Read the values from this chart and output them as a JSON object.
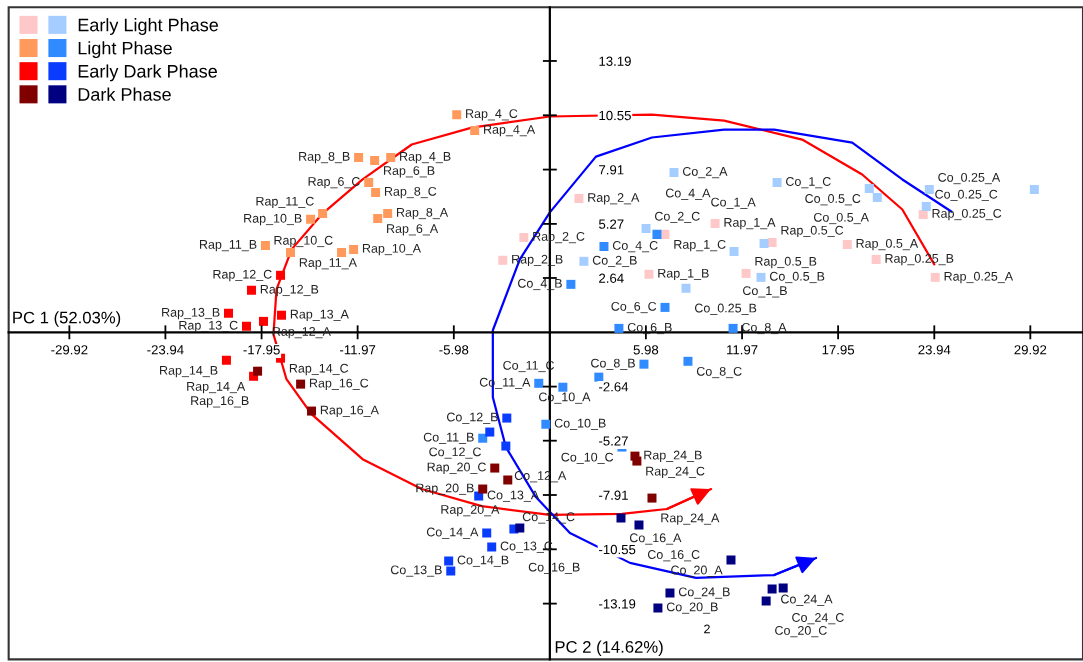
{
  "chart_data": {
    "type": "scatter",
    "marker": "square",
    "legend": "top left",
    "xlabel": "PC 1 (52.03%)",
    "ylabel": "PC 2 (14.62%)",
    "xlim": [
      -33.7,
      33.2
    ],
    "ylim": [
      -15.9,
      15.8
    ],
    "xticks": [
      -29.92,
      -23.94,
      -17.95,
      -11.97,
      -5.98,
      5.98,
      11.97,
      17.95,
      23.94,
      29.92
    ],
    "yticks": [
      -13.19,
      -10.55,
      -7.91,
      -5.27,
      -2.64,
      2.64,
      5.27,
      7.91,
      10.55,
      13.19
    ],
    "series": [
      {
        "color": "#ffc8c8",
        "x": [
          1.81,
          -1.62,
          -2.93,
          6.17,
          10.29,
          7.17,
          13.84,
          18.52,
          20.32,
          24.0,
          23.25,
          12.22
        ],
        "values": [
          6.5,
          4.61,
          3.5,
          2.82,
          5.29,
          4.76,
          4.37,
          4.27,
          3.54,
          2.67,
          5.73,
          2.86
        ]
      },
      {
        "name": "Early Light Phase",
        "color": "#a6cdff",
        "x": [
          7.73,
          14.15,
          19.89,
          20.39,
          23.44,
          23.63,
          30.17,
          2.12,
          5.99,
          11.47,
          13.34,
          13.15,
          8.48
        ],
        "values": [
          7.77,
          7.28,
          6.99,
          6.55,
          6.12,
          6.94,
          6.94,
          3.45,
          5.05,
          3.93,
          4.32,
          2.67,
          2.14
        ]
      },
      {
        "color": "#ff9a5c",
        "x": [
          -5.8,
          -4.68,
          -11.91,
          -10.91,
          -9.91,
          -11.28,
          -10.85,
          -14.15,
          -14.9,
          -10.1,
          -10.72,
          -17.71,
          -16.15,
          -12.97,
          -12.22
        ],
        "values": [
          10.58,
          9.81,
          8.5,
          8.35,
          8.5,
          7.28,
          6.8,
          5.78,
          5.49,
          5.78,
          5.53,
          4.22,
          3.88,
          3.88,
          4.03
        ]
      },
      {
        "name": "Light Phase",
        "color": "#2f8bff",
        "x": [
          6.67,
          3.37,
          1.31,
          7.17,
          4.3,
          11.41,
          5.86,
          8.6,
          3.05,
          -0.69,
          0.81,
          -0.25,
          -4.18,
          4.49
        ],
        "values": [
          4.76,
          4.17,
          2.33,
          1.21,
          0.19,
          0.19,
          -1.55,
          -1.41,
          -2.18,
          -2.48,
          -2.67,
          -4.47,
          -5.15,
          -5.58
        ]
      },
      {
        "color": "#ff0000",
        "x": [
          -16.77,
          -18.58,
          -20.01,
          -16.71,
          -18.89,
          -17.83,
          -20.14,
          -16.77,
          -18.45
        ],
        "values": [
          2.77,
          2.04,
          0.92,
          0.83,
          0.29,
          0.53,
          -1.36,
          -1.26,
          -2.14
        ]
      },
      {
        "name": "Early Dark Phase",
        "color": "#0a3cff",
        "x": [
          -2.68,
          -3.74,
          -2.74,
          -4.43,
          -3.93,
          -3.62,
          -6.3,
          -6.17,
          -2.24
        ],
        "values": [
          -4.17,
          -4.85,
          -5.53,
          -7.96,
          -9.76,
          -10.44,
          -11.12,
          -11.6,
          -9.56
        ]
      },
      {
        "color": "#800000",
        "x": [
          -18.2,
          -15.52,
          -14.84,
          -3.43,
          -2.62,
          -4.18,
          5.3,
          5.42,
          6.36
        ],
        "values": [
          -1.89,
          -2.52,
          -3.83,
          -6.6,
          -7.18,
          -7.62,
          -6.02,
          -6.26,
          -8.06
        ]
      },
      {
        "name": "Dark Phase",
        "color": "#000080",
        "x": [
          -1.87,
          4.43,
          5.55,
          11.28,
          7.48,
          6.73,
          13.84,
          14.53,
          13.47
        ],
        "values": [
          -9.51,
          -9.03,
          -9.37,
          -11.07,
          -12.67,
          -13.4,
          -12.48,
          -12.43,
          -13.06
        ]
      },
      {
        "type": "line",
        "marker": "none",
        "color": "#ff0000",
        "x": [
          23.94,
          21.95,
          19.45,
          15.71,
          10.85,
          6.36,
          0,
          -4.86,
          -8.6,
          -11.66,
          -14.21,
          -16.08,
          -17.02,
          -17.21,
          -16.4,
          -14.84,
          -11.66,
          -7.98,
          -4.24,
          0,
          4.49,
          7.29,
          10.04
        ],
        "values": [
          3.3,
          5.97,
          7.67,
          9.37,
          10.29,
          10.58,
          10.49,
          9.95,
          9.13,
          7.43,
          5.73,
          4.03,
          2.09,
          -0.1,
          -2.28,
          -3.98,
          -6.17,
          -7.62,
          -8.45,
          -8.88,
          -8.83,
          -8.59,
          -7.62
        ]
      },
      {
        "type": "line",
        "marker": "none",
        "color": "#0000ff",
        "x": [
          25.0,
          21.95,
          18.83,
          13.97,
          10.85,
          6.36,
          2.87,
          0,
          -1.87,
          -3.55,
          -3.55,
          -2.74,
          -0.87,
          1.25,
          4.99,
          9.1,
          13.97,
          16.58
        ],
        "values": [
          5.87,
          7.43,
          9.22,
          9.85,
          9.85,
          9.47,
          8.54,
          5.83,
          3.54,
          0.1,
          -3.16,
          -5.58,
          -8.01,
          -9.76,
          -11.21,
          -11.94,
          -11.8,
          -10.97
        ]
      }
    ],
    "annotations": [
      {
        "text": "Rap_2_A",
        "x": 1.81,
        "y": 6.5
      },
      {
        "text": "Rap_2_C",
        "x": -1.62,
        "y": 4.61
      },
      {
        "text": "Rap_2_B",
        "x": -2.93,
        "y": 3.5
      },
      {
        "text": "Rap_1_B",
        "x": 6.17,
        "y": 2.82
      },
      {
        "text": "Rap_1_A",
        "x": 10.29,
        "y": 5.29
      },
      {
        "text": "Rap_1_C",
        "x": 7.17,
        "y": 4.76
      },
      {
        "text": "Rap_0.5_C",
        "x": 13.84,
        "y": 4.37
      },
      {
        "text": "Rap_0.5_A",
        "x": 18.52,
        "y": 4.27
      },
      {
        "text": "Rap_0.25_B",
        "x": 20.32,
        "y": 3.54
      },
      {
        "text": "Rap_0.25_A",
        "x": 24.0,
        "y": 2.67
      },
      {
        "text": "Rap_0.25_C",
        "x": 23.25,
        "y": 5.73
      },
      {
        "text": "Rap_0.5_B",
        "x": 12.22,
        "y": 2.86
      },
      {
        "text": "Co_2_A",
        "x": 7.73,
        "y": 7.77
      },
      {
        "text": "Co_1_C",
        "x": 14.15,
        "y": 7.28
      },
      {
        "text": "Co_0.5_C",
        "x": 19.89,
        "y": 6.99
      },
      {
        "text": "Co_0.5_A",
        "x": 20.39,
        "y": 6.55
      },
      {
        "text": "Co_0.25_C",
        "x": 23.44,
        "y": 6.12
      },
      {
        "text": "Co_0.25_A",
        "x": 23.63,
        "y": 6.94
      },
      {
        "text": "Co_2_B",
        "x": 2.12,
        "y": 3.45
      },
      {
        "text": "Co_2_C",
        "x": 5.99,
        "y": 5.05
      },
      {
        "text": "Co_1_B",
        "x": 11.47,
        "y": 3.93
      },
      {
        "text": "Co_1_A",
        "x": 13.34,
        "y": 4.32
      },
      {
        "text": "Co_0.5_B",
        "x": 13.15,
        "y": 2.67
      },
      {
        "text": "Co_0.25_B",
        "x": 8.48,
        "y": 2.14
      },
      {
        "text": "Rap_4_C",
        "x": -5.8,
        "y": 10.58
      },
      {
        "text": "Rap_4_A",
        "x": -4.68,
        "y": 9.81
      },
      {
        "text": "Rap_8_B",
        "x": -11.91,
        "y": 8.5
      },
      {
        "text": "Rap_6_B",
        "x": -10.91,
        "y": 8.35
      },
      {
        "text": "Rap_4_B",
        "x": -9.91,
        "y": 8.5
      },
      {
        "text": "Rap_6_C",
        "x": -11.28,
        "y": 7.28
      },
      {
        "text": "Rap_8_C",
        "x": -10.85,
        "y": 6.8
      },
      {
        "text": "Rap_11_C",
        "x": -14.15,
        "y": 5.78
      },
      {
        "text": "Rap_10_B",
        "x": -14.9,
        "y": 5.49
      },
      {
        "text": "Rap_8_A",
        "x": -10.1,
        "y": 5.78
      },
      {
        "text": "Rap_6_A",
        "x": -10.72,
        "y": 5.53
      },
      {
        "text": "Rap_11_B",
        "x": -17.71,
        "y": 4.22
      },
      {
        "text": "Rap_11_A",
        "x": -16.15,
        "y": 3.88
      },
      {
        "text": "Rap_10_C",
        "x": -12.97,
        "y": 3.88
      },
      {
        "text": "Rap_10_A",
        "x": -12.22,
        "y": 4.03
      },
      {
        "text": "Co_4_A",
        "x": 6.67,
        "y": 4.76
      },
      {
        "text": "Co_4_C",
        "x": 3.37,
        "y": 4.17
      },
      {
        "text": "Co_4_B",
        "x": 1.31,
        "y": 2.33
      },
      {
        "text": "Co_6_C",
        "x": 7.17,
        "y": 1.21
      },
      {
        "text": "Co_6_B",
        "x": 4.3,
        "y": 0.19
      },
      {
        "text": "Co_8_A",
        "x": 11.41,
        "y": 0.19
      },
      {
        "text": "Co_8_B",
        "x": 5.86,
        "y": -1.55
      },
      {
        "text": "Co_8_C",
        "x": 8.6,
        "y": -1.41
      },
      {
        "text": "Co_10_A",
        "x": 3.05,
        "y": -2.18
      },
      {
        "text": "Co_11_A",
        "x": -0.69,
        "y": -2.48
      },
      {
        "text": "Co_11_C",
        "x": 0.81,
        "y": -2.67
      },
      {
        "text": "Co_10_B",
        "x": -0.25,
        "y": -4.47
      },
      {
        "text": "Co_11_B",
        "x": -4.18,
        "y": -5.15
      },
      {
        "text": "Co_10_C",
        "x": 4.49,
        "y": -5.58
      },
      {
        "text": "Rap_12_C",
        "x": -16.77,
        "y": 2.77
      },
      {
        "text": "Rap_12_B",
        "x": -18.58,
        "y": 2.04
      },
      {
        "text": "Rap_13_B",
        "x": -20.01,
        "y": 0.92
      },
      {
        "text": "Rap_13_A",
        "x": -16.71,
        "y": 0.83
      },
      {
        "text": "Rap_13_C",
        "x": -18.89,
        "y": 0.29
      },
      {
        "text": "Rap_12_A",
        "x": -17.83,
        "y": 0.53
      },
      {
        "text": "Rap_14_B",
        "x": -20.14,
        "y": -1.36
      },
      {
        "text": "Rap_14_C",
        "x": -16.77,
        "y": -1.26
      },
      {
        "text": "Rap_14_A",
        "x": -18.45,
        "y": -2.14
      },
      {
        "text": "Co_12_B",
        "x": -2.68,
        "y": -4.17
      },
      {
        "text": "Co_12_C",
        "x": -3.74,
        "y": -4.85
      },
      {
        "text": "Co_12_A",
        "x": -2.74,
        "y": -5.53
      },
      {
        "text": "Co_13_A",
        "x": -4.43,
        "y": -7.96
      },
      {
        "text": "Co_14_A",
        "x": -3.93,
        "y": -9.76
      },
      {
        "text": "Co_13_C",
        "x": -3.62,
        "y": -10.44
      },
      {
        "text": "Co_14_B",
        "x": -6.3,
        "y": -11.12
      },
      {
        "text": "Co_13_B",
        "x": -6.17,
        "y": -11.6
      },
      {
        "text": "Co_14_C",
        "x": -2.24,
        "y": -9.56
      },
      {
        "text": "Rap_16_B",
        "x": -18.2,
        "y": -1.89
      },
      {
        "text": "Rap_16_C",
        "x": -15.52,
        "y": -2.52
      },
      {
        "text": "Rap_16_A",
        "x": -14.84,
        "y": -3.83
      },
      {
        "text": "Rap_20_C",
        "x": -3.43,
        "y": -6.6
      },
      {
        "text": "Rap_20_A",
        "x": -2.62,
        "y": -7.18
      },
      {
        "text": "Rap_20_B",
        "x": -4.18,
        "y": -7.62
      },
      {
        "text": "Rap_24_B",
        "x": 5.3,
        "y": -6.02
      },
      {
        "text": "Rap_24_C",
        "x": 5.42,
        "y": -6.26
      },
      {
        "text": "Rap_24_A",
        "x": 6.36,
        "y": -8.06
      },
      {
        "text": "Co_16_B",
        "x": -1.87,
        "y": -9.51
      },
      {
        "text": "Co_16_A",
        "x": 4.43,
        "y": -9.03
      },
      {
        "text": "Co_16_C",
        "x": 5.55,
        "y": -9.37
      },
      {
        "text": "Co_20_A",
        "x": 11.28,
        "y": -11.07
      },
      {
        "text": "Co_24_B",
        "x": 7.48,
        "y": -12.67
      },
      {
        "text": "Co_20_B",
        "x": 6.73,
        "y": -13.4
      },
      {
        "text": "Co_24_A",
        "x": 13.84,
        "y": -12.48
      },
      {
        "text": "Co_24_C",
        "x": 14.53,
        "y": -12.43
      },
      {
        "text": "Co_20_C",
        "x": 13.47,
        "y": -13.06
      },
      "2"
    ]
  }
}
